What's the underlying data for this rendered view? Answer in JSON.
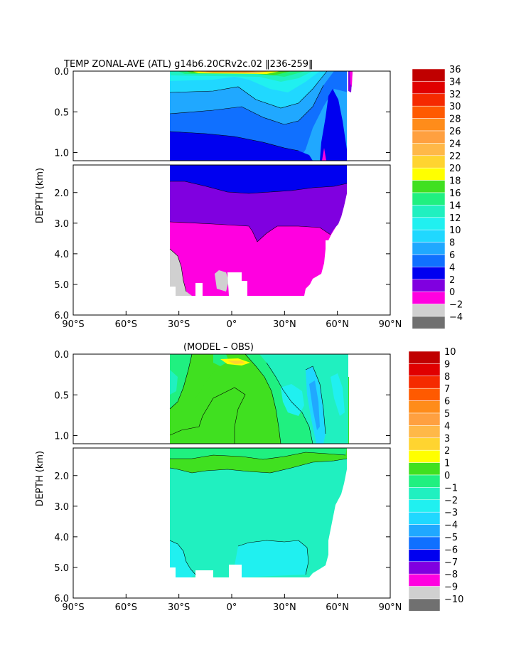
{
  "chart_data": [
    {
      "type": "heatmap",
      "title": "TEMP ZONAL-AVE (ATL) g14b6.20CRv2c.02 ‖236-259‖",
      "ylabel": "DEPTH (km)",
      "x_ticks": [
        "90°S",
        "60°S",
        "30°S",
        "0°",
        "30°N",
        "60°N",
        "90°N"
      ],
      "x_range": [
        -90,
        90
      ],
      "y_ticks_upper": [
        "0.0",
        "0.5",
        "1.0"
      ],
      "y_ticks_lower": [
        "2.0",
        "3.0",
        "4.0",
        "5.0",
        "6.0"
      ],
      "y_range": [
        0,
        6
      ],
      "colorbar": {
        "labels": [
          "36",
          "34",
          "32",
          "30",
          "28",
          "26",
          "24",
          "22",
          "20",
          "18",
          "16",
          "14",
          "12",
          "10",
          "8",
          "6",
          "4",
          "2",
          "0",
          "−2",
          "−4"
        ],
        "colors": [
          "#c00000",
          "#e00000",
          "#f52a00",
          "#ff5a00",
          "#ff8c1a",
          "#ffa040",
          "#ffb848",
          "#ffd430",
          "#ffff00",
          "#40e020",
          "#20f080",
          "#20f0c0",
          "#20f0f0",
          "#20d8ff",
          "#20a8ff",
          "#1070ff",
          "#0000f0",
          "#8000e0",
          "#ff00e0",
          "#d0d0d0",
          "#707070"
        ]
      }
    },
    {
      "type": "heatmap",
      "title": "(MODEL – OBS)",
      "ylabel": "DEPTH (km)",
      "x_ticks": [
        "90°S",
        "60°S",
        "30°S",
        "0°",
        "30°N",
        "60°N",
        "90°N"
      ],
      "x_range": [
        -90,
        90
      ],
      "y_ticks_upper": [
        "0.0",
        "0.5",
        "1.0"
      ],
      "y_ticks_lower": [
        "2.0",
        "3.0",
        "4.0",
        "5.0",
        "6.0"
      ],
      "y_range": [
        0,
        6
      ],
      "colorbar": {
        "labels": [
          "10",
          "9",
          "8",
          "7",
          "6",
          "5",
          "4",
          "3",
          "2",
          "1",
          "0",
          "−1",
          "−2",
          "−3",
          "−4",
          "−5",
          "−6",
          "−7",
          "−8",
          "−9",
          "−10"
        ],
        "colors": [
          "#c00000",
          "#e00000",
          "#f52a00",
          "#ff5a00",
          "#ff8c1a",
          "#ffa040",
          "#ffb848",
          "#ffd430",
          "#ffff00",
          "#40e020",
          "#20f080",
          "#20f0c0",
          "#20f0f0",
          "#20d8ff",
          "#20a8ff",
          "#1070ff",
          "#0000f0",
          "#8000e0",
          "#ff00e0",
          "#d0d0d0",
          "#707070"
        ]
      }
    }
  ]
}
